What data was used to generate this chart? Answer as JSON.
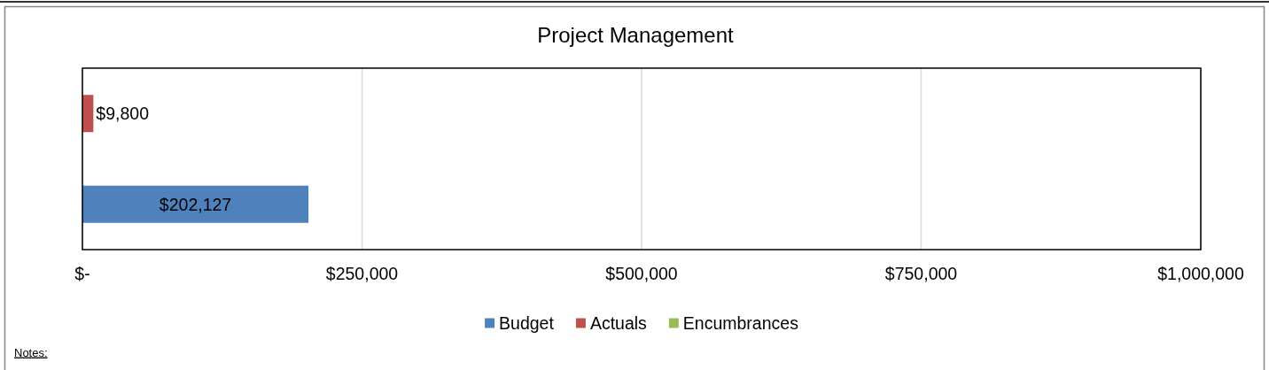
{
  "chart_data": {
    "type": "bar",
    "title": "Project Management",
    "orientation": "horizontal",
    "stacked": true,
    "categories": [
      null,
      null
    ],
    "series": [
      {
        "name": "Budget",
        "color": "#4f81bd",
        "values": [
          null,
          202127
        ],
        "value_labels": [
          null,
          "$202,127"
        ]
      },
      {
        "name": "Actuals",
        "color": "#c0504d",
        "values": [
          9800,
          null
        ],
        "value_labels": [
          "$9,800",
          null
        ]
      },
      {
        "name": "Encumbrances",
        "color": "#9bbb59",
        "values": [
          null,
          null
        ]
      }
    ],
    "xlim": [
      0,
      1000000
    ],
    "xticks": [
      {
        "value": 0,
        "label": "$-"
      },
      {
        "value": 250000,
        "label": "$250,000"
      },
      {
        "value": 500000,
        "label": "$500,000"
      },
      {
        "value": 750000,
        "label": "$750,000"
      },
      {
        "value": 1000000,
        "label": "$1,000,000"
      }
    ],
    "grid": "x",
    "legend": "bottom",
    "annotations": [
      "Notes:"
    ]
  }
}
